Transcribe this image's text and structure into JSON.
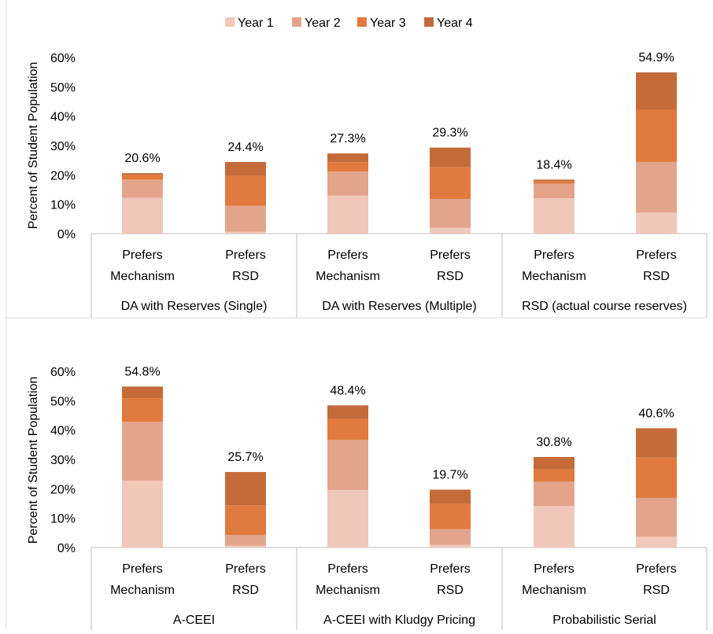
{
  "colors": {
    "year1": "#F0C8B9",
    "year2": "#E4A48C",
    "year3": "#E17A3E",
    "year4": "#C56B3A",
    "axis": "#BFBFBF",
    "border": "#D9D9D9"
  },
  "legend": {
    "position": "top-center",
    "items": [
      {
        "label": "Year 1",
        "color_key": "year1"
      },
      {
        "label": "Year 2",
        "color_key": "year2"
      },
      {
        "label": "Year 3",
        "color_key": "year3"
      },
      {
        "label": "Year 4",
        "color_key": "year4"
      }
    ]
  },
  "chart_data": [
    {
      "type": "bar",
      "stacked": true,
      "ylabel": "Percent of Student Population",
      "ylim": [
        0,
        60
      ],
      "yticks": [
        "0%",
        "10%",
        "20%",
        "30%",
        "40%",
        "50%",
        "60%"
      ],
      "series_names": [
        "Year 1",
        "Year 2",
        "Year 3",
        "Year 4"
      ],
      "groups": [
        {
          "label": "DA with Reserves (Single)",
          "bars": [
            {
              "label_line1": "Prefers",
              "label_line2": "Mechanism",
              "total_label": "20.6%",
              "values": [
                12.2,
                6.2,
                1.6,
                0.6
              ]
            },
            {
              "label_line1": "Prefers",
              "label_line2": "RSD",
              "total_label": "24.4%",
              "values": [
                0.6,
                8.9,
                10.1,
                4.8
              ]
            }
          ]
        },
        {
          "label": "DA with Reserves (Multiple)",
          "bars": [
            {
              "label_line1": "Prefers",
              "label_line2": "Mechanism",
              "total_label": "27.3%",
              "values": [
                12.9,
                8.2,
                3.2,
                3.0
              ]
            },
            {
              "label_line1": "Prefers",
              "label_line2": "RSD",
              "total_label": "29.3%",
              "values": [
                2.0,
                9.8,
                10.8,
                6.7
              ]
            }
          ]
        },
        {
          "label": "RSD (actual course reserves)",
          "bars": [
            {
              "label_line1": "Prefers",
              "label_line2": "Mechanism",
              "total_label": "18.4%",
              "values": [
                12.0,
                5.0,
                0.9,
                0.5
              ]
            },
            {
              "label_line1": "Prefers",
              "label_line2": "RSD",
              "total_label": "54.9%",
              "values": [
                7.2,
                17.2,
                17.8,
                12.7
              ]
            }
          ]
        }
      ]
    },
    {
      "type": "bar",
      "stacked": true,
      "ylabel": "Percent of Student Population",
      "ylim": [
        0,
        60
      ],
      "yticks": [
        "0%",
        "10%",
        "20%",
        "30%",
        "40%",
        "50%",
        "60%"
      ],
      "series_names": [
        "Year 1",
        "Year 2",
        "Year 3",
        "Year 4"
      ],
      "groups": [
        {
          "label": "A-CEEI",
          "bars": [
            {
              "label_line1": "Prefers",
              "label_line2": "Mechanism",
              "total_label": "54.8%",
              "values": [
                22.8,
                20.0,
                8.0,
                4.0
              ]
            },
            {
              "label_line1": "Prefers",
              "label_line2": "RSD",
              "total_label": "25.7%",
              "values": [
                0.6,
                3.7,
                10.1,
                11.3
              ]
            }
          ]
        },
        {
          "label": "A-CEEI with Kludgy Pricing",
          "bars": [
            {
              "label_line1": "Prefers",
              "label_line2": "Mechanism",
              "total_label": "48.4%",
              "values": [
                19.6,
                17.0,
                7.2,
                4.6
              ]
            },
            {
              "label_line1": "Prefers",
              "label_line2": "RSD",
              "total_label": "19.7%",
              "values": [
                0.9,
                5.3,
                8.6,
                4.9
              ]
            }
          ]
        },
        {
          "label": "Probabilistic Serial",
          "bars": [
            {
              "label_line1": "Prefers",
              "label_line2": "Mechanism",
              "total_label": "30.8%",
              "values": [
                14.1,
                8.3,
                4.2,
                4.2
              ]
            },
            {
              "label_line1": "Prefers",
              "label_line2": "RSD",
              "total_label": "40.6%",
              "values": [
                3.7,
                13.2,
                13.7,
                10.0
              ]
            }
          ]
        }
      ]
    }
  ]
}
